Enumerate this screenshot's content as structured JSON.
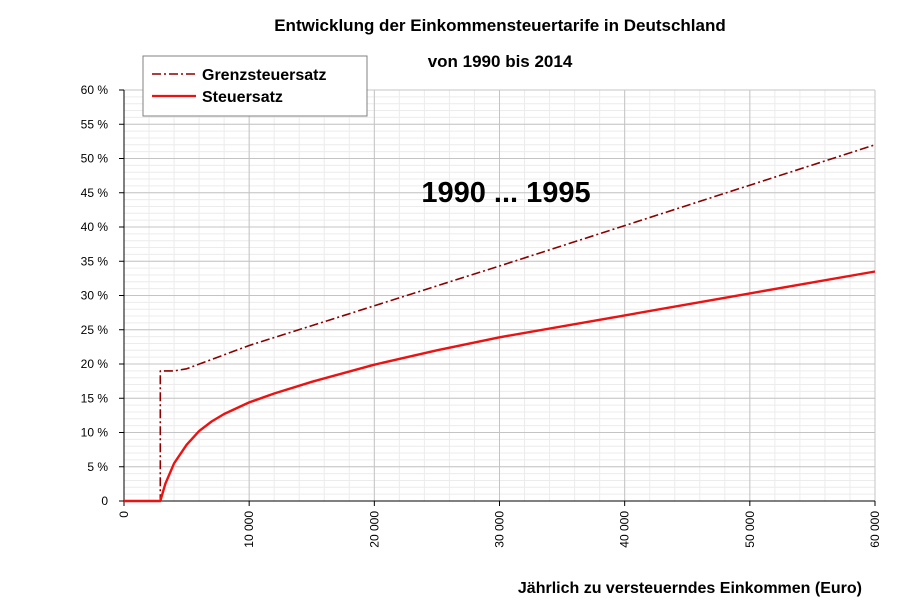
{
  "chart_data": {
    "type": "line",
    "title": "Entwicklung der Einkommensteuertarife in Deutschland",
    "subtitle": "von 1990 bis 2014",
    "annotation": "1990 ... 1995",
    "xlabel": "Jährlich zu versteuerndes Einkommen (Euro)",
    "ylabel": "",
    "xlim": [
      0,
      60000
    ],
    "ylim": [
      0,
      60
    ],
    "x_ticks": [
      0,
      10000,
      20000,
      30000,
      40000,
      50000,
      60000
    ],
    "x_tick_labels": [
      "0",
      "10 000",
      "20 000",
      "30 000",
      "40 000",
      "50 000",
      "60 000"
    ],
    "y_ticks": [
      0,
      5,
      10,
      15,
      20,
      25,
      30,
      35,
      40,
      45,
      50,
      55,
      60
    ],
    "y_tick_labels": [
      "0",
      "5 %",
      "10 %",
      "15 %",
      "20 %",
      "25 %",
      "30 %",
      "35 %",
      "40 %",
      "45 %",
      "50 %",
      "55 %",
      "60 %"
    ],
    "grid": true,
    "legend_position": "top-left",
    "series": [
      {
        "name": "Grenzsteuersatz",
        "color": "#8b0000",
        "style": "dash-dot",
        "x": [
          0,
          2900,
          2900,
          4000,
          5000,
          10000,
          20000,
          30000,
          40000,
          50000,
          60000
        ],
        "y": [
          0,
          0,
          19,
          19,
          19.3,
          22.7,
          28.5,
          34.3,
          40.2,
          46.1,
          52.0
        ]
      },
      {
        "name": "Steuersatz",
        "color": "#ee1111",
        "style": "solid",
        "x": [
          0,
          2900,
          3300,
          4000,
          5000,
          6000,
          7000,
          8000,
          10000,
          12000,
          15000,
          20000,
          25000,
          30000,
          40000,
          50000,
          60000
        ],
        "y": [
          0,
          0,
          2.5,
          5.5,
          8.2,
          10.2,
          11.6,
          12.7,
          14.4,
          15.7,
          17.4,
          19.9,
          22.0,
          23.9,
          27.1,
          30.3,
          33.5
        ]
      }
    ]
  }
}
